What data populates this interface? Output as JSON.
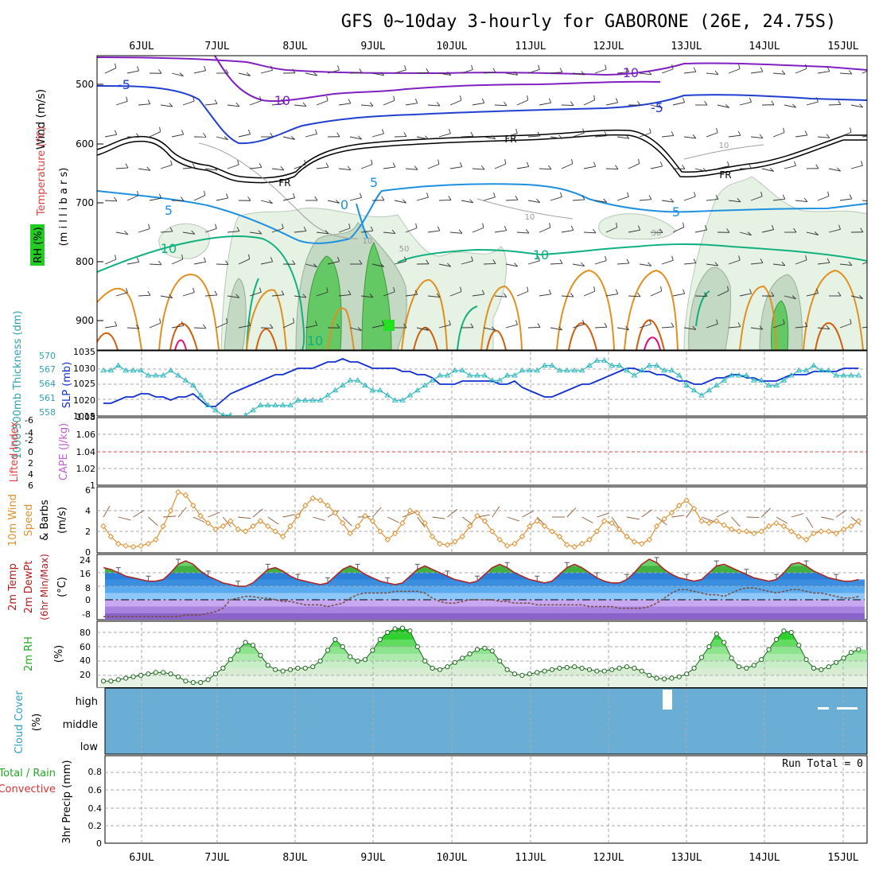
{
  "title": "GFS 0~10day 3-hourly for GABORONE (26E, 24.75S)",
  "dates": [
    "6JUL",
    "7JUL",
    "8JUL",
    "9JUL",
    "10JUL",
    "11JUL",
    "12JUL",
    "13JUL",
    "14JUL",
    "15JUL"
  ],
  "colors": {
    "frame": "#000000",
    "grid": "#aaaaaa",
    "purple": "#8020c0",
    "blue": "#2040d0",
    "lightblue": "#1e90e0",
    "teal": "#10b080",
    "orange": "#e09020",
    "darkorange": "#d06010",
    "magenta": "#e0107a",
    "rh_light": "#e6f2e3",
    "rh_mid": "#c4d9c3",
    "rh_green": "#64c864",
    "rh_bright": "#22e022",
    "cyan": "#30b8c0",
    "slp_blue": "#1030d0",
    "lifted_red": "#e04040",
    "cape_violet": "#c060d0",
    "wind10": "#e09030",
    "temp_red": "#b02020",
    "cloud": "#6aaed6"
  },
  "panels": {
    "upper": {
      "ylabel_wind": "Wind (m/s)",
      "ylabel_temp": "Temperature (°C)",
      "ylabel_rh": "RH (%)",
      "ylabel_mb": "(m i l l i b a r s)",
      "yticks": [
        "500",
        "600",
        "700",
        "800",
        "900"
      ]
    },
    "thickness": {
      "ylabel_left": "1000-500mb Thickness (dm)",
      "ylabel_right": "SLP (mb)",
      "left_ticks": [
        "570",
        "567",
        "564",
        "561",
        "558"
      ],
      "right_ticks": [
        "1035",
        "1030",
        "1025",
        "1020",
        "1015"
      ]
    },
    "lifted": {
      "ylabel_left": "Lifted Index",
      "ylabel_right": "CAPE (J/kg)",
      "left_ticks": [
        "-6",
        "-4",
        "-2",
        "0",
        "2",
        "4",
        "6"
      ],
      "right_ticks": [
        "1.08",
        "1.06",
        "1.04",
        "1.02",
        "1"
      ],
      "top_right_tick": "1.08"
    },
    "wind10m": {
      "ylabel1": "10m Wind",
      "ylabel2": "Speed",
      "ylabel3": "& Barbs",
      "ylabel4": "(m/s)",
      "yticks": [
        "6",
        "4",
        "2",
        "0"
      ]
    },
    "temp2m": {
      "ylabel1": "2m Temp",
      "ylabel2": "2m DewPt",
      "ylabel3": "(6hr Min/Max)",
      "ylabel4": "(°C)",
      "yticks": [
        "24",
        "16",
        "8",
        "0",
        "-8"
      ]
    },
    "rh2m": {
      "ylabel1": "2m RH",
      "ylabel2": "(%)",
      "yticks": [
        "80",
        "60",
        "40",
        "20"
      ]
    },
    "cloud": {
      "ylabel1": "Cloud Cover",
      "ylabel2": "(%)",
      "levels": [
        "high",
        "middle",
        "low"
      ]
    },
    "precip": {
      "ylabel1": "Total / Rain",
      "ylabel2": "Convective",
      "ylabel3": "3hr Precip (mm)",
      "yticks": [
        "0.8",
        "0.6",
        "0.4",
        "0.2",
        "0"
      ],
      "run_total": "Run Total = 0"
    }
  },
  "contour_labels": {
    "m10a": "-10",
    "m10b": "-10",
    "m5a": "-5",
    "m5b": "-5",
    "frA": "FR",
    "frB": "FR",
    "frC": "FR",
    "p5a": "5",
    "p5b": "5",
    "p5c": "5",
    "zero": "0",
    "p10a": "10",
    "p10b": "10",
    "p10c": "10",
    "rh10a": "10",
    "rh10b": "10",
    "rh10c": "10",
    "rh30": "30",
    "rh50": "50"
  },
  "chart_data": {
    "type": "line",
    "x_start": "5JUL 12Z",
    "x_step_hours": 3,
    "x_tick_labels": [
      "6JUL",
      "7JUL",
      "8JUL",
      "9JUL",
      "10JUL",
      "11JUL",
      "12JUL",
      "13JUL",
      "14JUL",
      "15JUL"
    ],
    "slp_mb": [
      1019,
      1019,
      1020,
      1021,
      1021,
      1022,
      1022,
      1021,
      1021,
      1020,
      1021,
      1021,
      1022,
      1020,
      1018,
      1018,
      1020,
      1022,
      1023,
      1024,
      1025,
      1026,
      1027,
      1028,
      1028,
      1029,
      1030,
      1030,
      1030,
      1031,
      1032,
      1032,
      1033,
      1032,
      1032,
      1031,
      1030,
      1030,
      1030,
      1030,
      1029,
      1029,
      1028,
      1028,
      1027,
      1025,
      1025,
      1025,
      1026,
      1026,
      1026,
      1026,
      1026,
      1025,
      1025,
      1026,
      1024,
      1023,
      1022,
      1021,
      1021,
      1022,
      1023,
      1024,
      1025,
      1025,
      1026,
      1027,
      1028,
      1029,
      1030,
      1030,
      1029,
      1029,
      1028,
      1028,
      1027,
      1026,
      1026,
      1025,
      1025,
      1026,
      1027,
      1027,
      1028,
      1028,
      1027,
      1027,
      1026,
      1026,
      1026,
      1027,
      1028,
      1028,
      1028,
      1029,
      1029,
      1029,
      1029,
      1030,
      1030,
      1030
    ],
    "thickness_dm": [
      567,
      567,
      568,
      567,
      567,
      567,
      566,
      566,
      566,
      567,
      566,
      565,
      564,
      562,
      560,
      559,
      558,
      558,
      557,
      558,
      559,
      560,
      560,
      560,
      560,
      560,
      561,
      561,
      561,
      561,
      562,
      563,
      564,
      565,
      565,
      564,
      563,
      563,
      562,
      561,
      561,
      562,
      563,
      564,
      565,
      566,
      566,
      567,
      567,
      566,
      566,
      566,
      565,
      565,
      566,
      566,
      567,
      567,
      567,
      568,
      568,
      567,
      567,
      567,
      567,
      568,
      569,
      569,
      568,
      568,
      567,
      566,
      567,
      568,
      568,
      567,
      567,
      566,
      564,
      563,
      562,
      563,
      564,
      565,
      566,
      566,
      566,
      565,
      565,
      564,
      564,
      565,
      566,
      567,
      567,
      568,
      567,
      567,
      566,
      566,
      566,
      566
    ],
    "lifted_index": [
      0
    ],
    "cape_jkg": [
      0
    ],
    "wind10m_ms": [
      2.5,
      1.5,
      0.8,
      0.6,
      0.5,
      0.6,
      0.8,
      1.2,
      2.5,
      4.0,
      5.8,
      5.5,
      4.5,
      3.5,
      2.8,
      2.2,
      2.5,
      3.0,
      2.2,
      2.0,
      2.5,
      3.0,
      2.5,
      2.0,
      1.5,
      2.5,
      3.5,
      4.5,
      5.2,
      5.0,
      4.5,
      3.8,
      2.8,
      1.8,
      2.5,
      3.5,
      3.0,
      2.0,
      1.2,
      1.8,
      2.8,
      4.0,
      3.8,
      2.8,
      1.5,
      0.8,
      0.7,
      1.0,
      1.5,
      2.5,
      3.5,
      3.0,
      2.0,
      1.2,
      0.6,
      0.8,
      1.5,
      2.5,
      3.0,
      2.5,
      2.0,
      1.5,
      0.7,
      0.5,
      0.8,
      1.2,
      2.0,
      3.0,
      2.8,
      2.2,
      1.5,
      1.0,
      0.8,
      1.2,
      2.5,
      3.2,
      3.8,
      4.5,
      5.0,
      4.2,
      3.0,
      2.8,
      3.0,
      2.6,
      2.2,
      2.0,
      2.0,
      1.8,
      2.0,
      2.5,
      2.8,
      2.5,
      2.0,
      1.5,
      1.2,
      1.8,
      2.0,
      2.0,
      1.8,
      2.2,
      2.5,
      3.0
    ],
    "temp2m_c": [
      19,
      18,
      16,
      14,
      13,
      12,
      11,
      11,
      12,
      16,
      21,
      23,
      21,
      17,
      14,
      12,
      10,
      9,
      8,
      8,
      10,
      14,
      18,
      19,
      17,
      14,
      12,
      11,
      10,
      9,
      10,
      14,
      18,
      20,
      18,
      15,
      13,
      11,
      10,
      9,
      10,
      14,
      18,
      20,
      18,
      16,
      14,
      12,
      11,
      10,
      11,
      15,
      19,
      21,
      19,
      16,
      14,
      12,
      11,
      10,
      11,
      15,
      19,
      21,
      19,
      16,
      13,
      11,
      10,
      10,
      12,
      16,
      21,
      24,
      22,
      18,
      15,
      13,
      12,
      11,
      12,
      16,
      20,
      21,
      19,
      17,
      15,
      13,
      12,
      11,
      12,
      16,
      21,
      22,
      20,
      17,
      15,
      13,
      12,
      11,
      11,
      12
    ],
    "dewpt2m_c": [
      -10,
      -10,
      -10,
      -10,
      -10,
      -10,
      -10,
      -10,
      -10,
      -10,
      -10,
      -9,
      -9,
      -9,
      -8,
      -7,
      -5,
      0,
      1,
      2,
      2,
      1,
      1,
      0,
      -1,
      -1,
      -2,
      -3,
      -3,
      -3,
      -4,
      -3,
      -2,
      1,
      3,
      4,
      4,
      4,
      4,
      5,
      5,
      5,
      5,
      4,
      1,
      -1,
      -2,
      -2,
      -1,
      0,
      0,
      0,
      0,
      -1,
      -1,
      -2,
      -2,
      -2,
      -3,
      -3,
      -3,
      -3,
      -3,
      -3,
      -3,
      -4,
      -4,
      -4,
      -4,
      -5,
      -5,
      -5,
      -5,
      -4,
      -2,
      1,
      4,
      6,
      6,
      5,
      4,
      3,
      3,
      2,
      4,
      6,
      7,
      7,
      6,
      5,
      4,
      5,
      6,
      6,
      5,
      4,
      4,
      3,
      2,
      1,
      1,
      2
    ],
    "rh2m_pct": [
      12,
      12,
      14,
      16,
      18,
      20,
      22,
      24,
      24,
      22,
      18,
      12,
      10,
      10,
      14,
      22,
      30,
      42,
      55,
      66,
      62,
      48,
      34,
      28,
      26,
      28,
      30,
      30,
      32,
      40,
      55,
      70,
      60,
      46,
      40,
      42,
      55,
      70,
      80,
      85,
      86,
      82,
      60,
      40,
      30,
      28,
      32,
      38,
      44,
      50,
      56,
      58,
      54,
      40,
      28,
      22,
      20,
      22,
      24,
      26,
      28,
      30,
      31,
      32,
      30,
      28,
      26,
      26,
      28,
      30,
      32,
      30,
      26,
      20,
      16,
      15,
      16,
      18,
      22,
      30,
      45,
      60,
      78,
      66,
      44,
      32,
      30,
      34,
      42,
      56,
      70,
      82,
      80,
      62,
      42,
      30,
      28,
      32,
      38,
      44,
      52,
      56
    ],
    "cloud_high_pct": [
      0
    ],
    "precip_mm": [
      0
    ],
    "run_total_mm": 0
  }
}
